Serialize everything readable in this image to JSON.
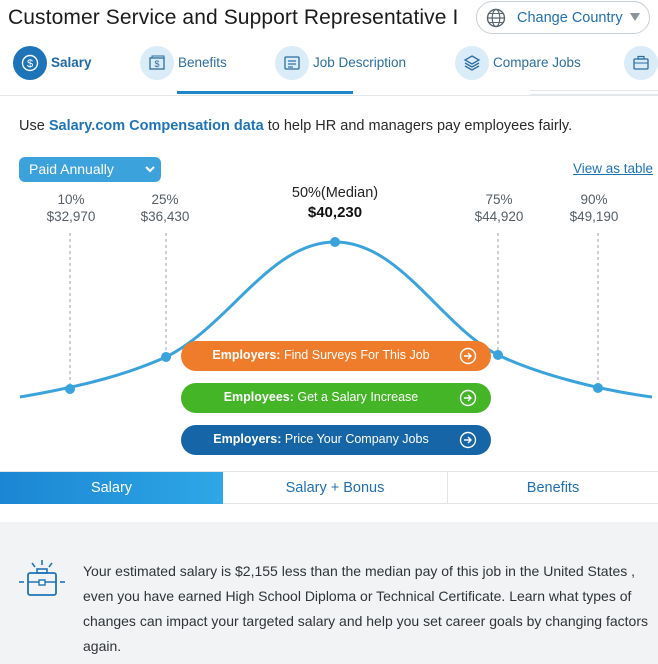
{
  "header": {
    "title": "Customer Service and Support Representative I",
    "country_button": "Change Country"
  },
  "tabs": [
    {
      "label": "Salary",
      "icon": "dollar-icon",
      "active": true
    },
    {
      "label": "Benefits",
      "icon": "money-icon",
      "active": false
    },
    {
      "label": "Job Description",
      "icon": "document-icon",
      "active": false
    },
    {
      "label": "Compare Jobs",
      "icon": "layers-icon",
      "active": false
    },
    {
      "label": "",
      "icon": "briefcase-icon",
      "active": false
    }
  ],
  "intro": {
    "prefix": "Use ",
    "link": "Salary.com Compensation data",
    "suffix": " to help HR and managers pay employees fairly."
  },
  "pay_period": {
    "selected": "Paid Annually"
  },
  "view_as_table": "View as table",
  "percentiles": [
    {
      "label": "10%",
      "value": "$32,970"
    },
    {
      "label": "25%",
      "value": "$36,430"
    },
    {
      "label": "50%(Median)",
      "value": "$40,230"
    },
    {
      "label": "75%",
      "value": "$44,920"
    },
    {
      "label": "90%",
      "value": "$49,190"
    }
  ],
  "cta": {
    "orange": {
      "bold": "Employers:",
      "text": " Find Surveys For This Job"
    },
    "green": {
      "bold": "Employees:",
      "text": " Get a Salary Increase"
    },
    "blue": {
      "bold": "Employers:",
      "text": " Price Your Company Jobs"
    }
  },
  "bottom_tabs": [
    "Salary",
    "Salary + Bonus",
    "Benefits"
  ],
  "info_message": "Your estimated salary is $2,155 less than the median pay of this job in the United States , even you have earned High School Diploma or Technical Certificate. Learn what types of changes can impact your targeted salary and help you set career goals by changing factors again.",
  "colors": {
    "accent": "#1e74b8",
    "curve": "#3aa3dc",
    "orange": "#ee7c2b",
    "green": "#45b528",
    "blue": "#1565a7"
  }
}
